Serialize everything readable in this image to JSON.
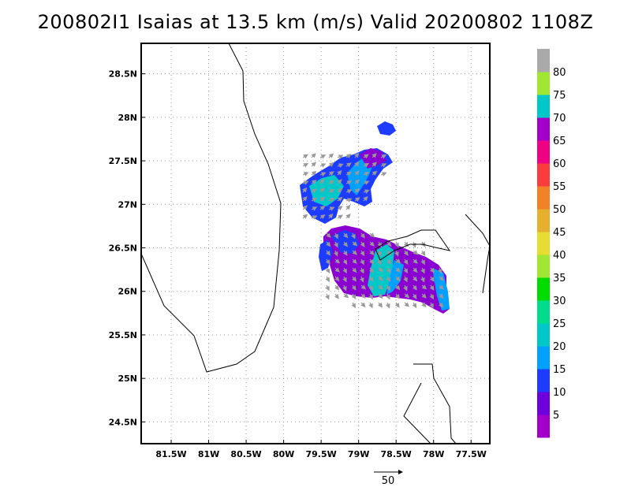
{
  "title": "200802I1 Isaias at 13.5 km (m/s) Valid 20200802 1108Z",
  "map": {
    "lon_range": [
      -81.9,
      -77.25
    ],
    "lat_range": [
      24.25,
      28.85
    ],
    "lon_ticks": [
      "81.5W",
      "81W",
      "80.5W",
      "80W",
      "79.5W",
      "79W",
      "78.5W",
      "78W",
      "77.5W"
    ],
    "lon_tick_values": [
      -81.5,
      -81,
      -80.5,
      -80,
      -79.5,
      -79,
      -78.5,
      -78,
      -77.5
    ],
    "lat_ticks": [
      "28.5N",
      "28N",
      "27.5N",
      "27N",
      "26.5N",
      "26N",
      "25.5N",
      "25N",
      "24.5N"
    ],
    "lat_tick_values": [
      28.5,
      28,
      27.5,
      27,
      26.5,
      26,
      25.5,
      25,
      24.5
    ],
    "grid": "dotted"
  },
  "colorbar": {
    "labels": [
      "5",
      "10",
      "15",
      "20",
      "25",
      "30",
      "35",
      "40",
      "45",
      "50",
      "55",
      "60",
      "65",
      "70",
      "75",
      "80"
    ],
    "colors": [
      "#a000c8",
      "#6e00dc",
      "#1e3cff",
      "#00a0ff",
      "#00c8c8",
      "#00dc8c",
      "#00dc00",
      "#a0e632",
      "#e6dc32",
      "#e6af2d",
      "#f08228",
      "#fa3c3c",
      "#f00082",
      "#a000c8",
      "#00c8c8",
      "#a0e632",
      "#aaaaaa"
    ]
  },
  "reference_vector": {
    "label": "50"
  }
}
